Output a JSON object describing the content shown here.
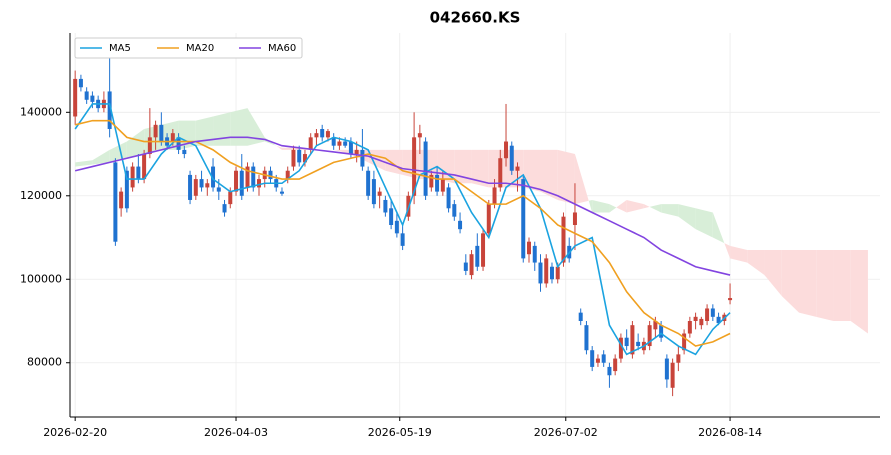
{
  "chart_data": {
    "type": "candlestick",
    "title": "042660.KS",
    "x": [
      0,
      1,
      2,
      3,
      4,
      5,
      6,
      7,
      8,
      9,
      10,
      11,
      12,
      13,
      14,
      15,
      16,
      17,
      18,
      19,
      20,
      21,
      22,
      23,
      24,
      25,
      26,
      27,
      28,
      29,
      30,
      31,
      32,
      33,
      34,
      35,
      36,
      37,
      38,
      39,
      40,
      41,
      42,
      43,
      44,
      45,
      46,
      47,
      48,
      49,
      50,
      51,
      52,
      53,
      54,
      55,
      56,
      57,
      58,
      59,
      60,
      61,
      62,
      63,
      64,
      65,
      66,
      67,
      68,
      69,
      70,
      71,
      72,
      73,
      74,
      75,
      76,
      77,
      78,
      79,
      80,
      81,
      82,
      83,
      84,
      85,
      86,
      87,
      88,
      89,
      90,
      91,
      92,
      93,
      94,
      95,
      96,
      97,
      98,
      99,
      100,
      101,
      102,
      103,
      104,
      105,
      106,
      107,
      108,
      109,
      110,
      111,
      112,
      113,
      114
    ],
    "ohlc": [
      [
        139000,
        150000,
        137000,
        148000
      ],
      [
        148000,
        149000,
        145000,
        146000
      ],
      [
        145000,
        146000,
        142000,
        143000
      ],
      [
        144000,
        145000,
        141000,
        142500
      ],
      [
        143000,
        144000,
        140000,
        141000
      ],
      [
        141000,
        145000,
        140000,
        143000
      ],
      [
        145000,
        153000,
        134000,
        136000
      ],
      [
        128000,
        129000,
        108000,
        109000
      ],
      [
        117000,
        122000,
        115000,
        121000
      ],
      [
        126000,
        127000,
        116000,
        117000
      ],
      [
        122000,
        128000,
        121000,
        127000
      ],
      [
        127000,
        130000,
        123000,
        124000
      ],
      [
        124000,
        131000,
        123000,
        130000
      ],
      [
        130000,
        141000,
        129000,
        134000
      ],
      [
        134000,
        138000,
        131000,
        137000
      ],
      [
        137000,
        140000,
        132000,
        133000
      ],
      [
        134000,
        135000,
        131000,
        132000
      ],
      [
        133000,
        136000,
        132000,
        135000
      ],
      [
        134000,
        135000,
        130000,
        131000
      ],
      [
        131000,
        132000,
        129000,
        130000
      ],
      [
        125000,
        126000,
        118000,
        119000
      ],
      [
        120000,
        125000,
        119000,
        124000
      ],
      [
        124000,
        126000,
        121000,
        122000
      ],
      [
        122000,
        124000,
        120000,
        123000
      ],
      [
        127000,
        129000,
        121000,
        122000
      ],
      [
        122000,
        124000,
        119000,
        121000
      ],
      [
        118000,
        119000,
        115000,
        116000
      ],
      [
        118000,
        122000,
        117000,
        121000
      ],
      [
        121000,
        127000,
        120000,
        126000
      ],
      [
        126000,
        130000,
        119000,
        120000
      ],
      [
        122000,
        128000,
        121000,
        127000
      ],
      [
        127000,
        128000,
        121000,
        122000
      ],
      [
        122000,
        125000,
        120000,
        124000
      ],
      [
        124000,
        127000,
        122000,
        126000
      ],
      [
        126000,
        127000,
        123000,
        124000
      ],
      [
        124000,
        125000,
        121000,
        122000
      ],
      [
        121000,
        122000,
        120000,
        120500
      ],
      [
        124000,
        127000,
        123000,
        126000
      ],
      [
        127000,
        132000,
        126000,
        131000
      ],
      [
        131000,
        132000,
        127000,
        128000
      ],
      [
        128000,
        131000,
        127000,
        130000
      ],
      [
        131000,
        135000,
        130000,
        134000
      ],
      [
        134000,
        136000,
        132000,
        135000
      ],
      [
        136000,
        137000,
        133000,
        134000
      ],
      [
        134000,
        136000,
        133000,
        135500
      ],
      [
        134000,
        135000,
        131000,
        132000
      ],
      [
        132000,
        134000,
        131000,
        133000
      ],
      [
        133000,
        134000,
        131500,
        132000
      ],
      [
        133000,
        134000,
        129000,
        130000
      ],
      [
        130000,
        133000,
        128000,
        131000
      ],
      [
        131000,
        136000,
        126000,
        127000
      ],
      [
        126000,
        127000,
        119000,
        120000
      ],
      [
        124000,
        126000,
        117000,
        118000
      ],
      [
        120000,
        122000,
        117000,
        121000
      ],
      [
        119000,
        120000,
        115000,
        116000
      ],
      [
        117000,
        119000,
        112000,
        113000
      ],
      [
        114000,
        116000,
        110000,
        111000
      ],
      [
        111000,
        113000,
        107000,
        108000
      ],
      [
        115000,
        121000,
        114000,
        120000
      ],
      [
        120000,
        140000,
        118000,
        134000
      ],
      [
        134000,
        137000,
        130000,
        135000
      ],
      [
        133000,
        134000,
        119000,
        120000
      ],
      [
        122000,
        126000,
        121000,
        125000
      ],
      [
        125000,
        127000,
        120000,
        121000
      ],
      [
        121000,
        126000,
        120000,
        124000
      ],
      [
        122000,
        123000,
        116000,
        117000
      ],
      [
        118000,
        119000,
        114000,
        115000
      ],
      [
        114000,
        116000,
        111000,
        112000
      ],
      [
        104000,
        106000,
        101000,
        102000
      ],
      [
        101000,
        107000,
        100000,
        106000
      ],
      [
        108000,
        111000,
        102000,
        103000
      ],
      [
        103000,
        112000,
        102000,
        111000
      ],
      [
        111000,
        119000,
        110000,
        118000
      ],
      [
        118000,
        124000,
        117000,
        122000
      ],
      [
        122000,
        131000,
        121000,
        129000
      ],
      [
        129000,
        142000,
        127000,
        133000
      ],
      [
        132000,
        133000,
        125000,
        126000
      ],
      [
        126000,
        128000,
        121000,
        127000
      ],
      [
        124000,
        125000,
        104000,
        105000
      ],
      [
        106000,
        110000,
        104000,
        109000
      ],
      [
        108000,
        109000,
        102000,
        104000
      ],
      [
        104000,
        106000,
        97000,
        99000
      ],
      [
        99000,
        106000,
        98000,
        105000
      ],
      [
        103000,
        104000,
        99000,
        100000
      ],
      [
        100000,
        104000,
        99000,
        103000
      ],
      [
        104000,
        116000,
        103000,
        115000
      ],
      [
        108000,
        110000,
        104000,
        105000
      ],
      [
        113000,
        123000,
        107000,
        116000
      ],
      [
        92000,
        93000,
        89000,
        90000
      ],
      [
        89000,
        90000,
        82000,
        83000
      ],
      [
        83000,
        84000,
        78000,
        79000
      ],
      [
        80000,
        82000,
        79000,
        81000
      ],
      [
        82000,
        83000,
        79000,
        80000
      ],
      [
        79000,
        80000,
        74000,
        77000
      ],
      [
        78000,
        82000,
        77000,
        81000
      ],
      [
        81000,
        87000,
        80000,
        86000
      ],
      [
        86000,
        88000,
        83000,
        84000
      ],
      [
        82000,
        90000,
        81000,
        89000
      ],
      [
        85000,
        87000,
        83000,
        84000
      ],
      [
        83000,
        86000,
        82000,
        85000
      ],
      [
        84000,
        90000,
        83000,
        89000
      ],
      [
        88000,
        91000,
        86000,
        90000
      ],
      [
        89000,
        90000,
        85000,
        86000
      ],
      [
        81000,
        82000,
        74000,
        76000
      ],
      [
        74000,
        81000,
        72000,
        80000
      ],
      [
        80000,
        84000,
        78000,
        82000
      ],
      [
        83000,
        88000,
        82000,
        87000
      ],
      [
        87000,
        91000,
        86000,
        90000
      ],
      [
        90000,
        92000,
        88000,
        91000
      ],
      [
        89000,
        91000,
        88000,
        90500
      ],
      [
        90000,
        94000,
        89000,
        93000
      ],
      [
        93000,
        94000,
        90000,
        91000
      ],
      [
        91000,
        92000,
        89000,
        89500
      ],
      [
        90000,
        92000,
        89000,
        91500
      ],
      [
        95000,
        99000,
        94000,
        95500
      ]
    ],
    "up_color": "#c8443a",
    "down_color": "#1f72d0",
    "series": [
      {
        "name": "MA5",
        "color": "#1ba3e0",
        "x": [
          0,
          3,
          6,
          9,
          12,
          15,
          18,
          21,
          24,
          27,
          30,
          33,
          36,
          39,
          42,
          45,
          48,
          51,
          54,
          57,
          60,
          63,
          66,
          69,
          72,
          75,
          78,
          81,
          84,
          87,
          90,
          93,
          96,
          99,
          102,
          105,
          108,
          111,
          114
        ],
        "values": [
          136000,
          142000,
          142000,
          124000,
          124000,
          130000,
          134000,
          132000,
          124000,
          121000,
          122000,
          123000,
          123000,
          126000,
          132000,
          134000,
          133000,
          131000,
          122000,
          113000,
          125000,
          127000,
          124000,
          116000,
          110000,
          122000,
          125000,
          117000,
          103000,
          108000,
          110000,
          89000,
          82000,
          84000,
          87000,
          84000,
          82000,
          88000,
          92000
        ]
      },
      {
        "name": "MA20",
        "color": "#f0a020",
        "x": [
          0,
          3,
          6,
          9,
          12,
          15,
          18,
          21,
          24,
          27,
          30,
          33,
          36,
          39,
          42,
          45,
          48,
          51,
          54,
          57,
          60,
          63,
          66,
          69,
          72,
          75,
          78,
          81,
          84,
          87,
          90,
          93,
          96,
          99,
          102,
          105,
          108,
          111,
          114
        ],
        "values": [
          137000,
          138000,
          138000,
          134000,
          133000,
          133000,
          133000,
          133000,
          131000,
          128000,
          126000,
          125000,
          124000,
          124000,
          126000,
          128000,
          129000,
          130000,
          129000,
          126000,
          125000,
          124000,
          124000,
          121000,
          118000,
          118000,
          120000,
          117000,
          113000,
          111000,
          109000,
          104000,
          97000,
          92000,
          89000,
          87000,
          84000,
          85000,
          87000
        ]
      },
      {
        "name": "MA60",
        "color": "#8244e0",
        "x": [
          0,
          3,
          6,
          9,
          12,
          15,
          18,
          21,
          24,
          27,
          30,
          33,
          36,
          39,
          42,
          45,
          48,
          51,
          54,
          57,
          60,
          63,
          66,
          69,
          72,
          75,
          78,
          81,
          84,
          87,
          90,
          93,
          96,
          99,
          102,
          105,
          108,
          111,
          114
        ],
        "values": [
          126000,
          127000,
          128000,
          129000,
          130000,
          131000,
          132000,
          133000,
          133500,
          134000,
          134000,
          133500,
          132000,
          131500,
          131000,
          130500,
          130000,
          129500,
          128000,
          126500,
          126000,
          125500,
          125000,
          124000,
          123000,
          123000,
          122500,
          121500,
          120000,
          118000,
          116000,
          114000,
          112000,
          110000,
          107000,
          105000,
          103000,
          102000,
          101000
        ]
      }
    ],
    "cloud": {
      "x": [
        0,
        3,
        6,
        9,
        12,
        15,
        18,
        21,
        24,
        27,
        30,
        33,
        36,
        39,
        42,
        45,
        48,
        51,
        54,
        57,
        60,
        63,
        66,
        69,
        72,
        75,
        78,
        81,
        84,
        87,
        90,
        93,
        96,
        99,
        102,
        105,
        108,
        111,
        114,
        117,
        120,
        123,
        126,
        129,
        132,
        135,
        138
      ],
      "span_a": [
        128000,
        128500,
        131000,
        133000,
        136000,
        137000,
        138000,
        138000,
        139000,
        140000,
        141000,
        134000,
        131000,
        131000,
        131000,
        131000,
        130000,
        128000,
        126000,
        125000,
        124000,
        124000,
        123000,
        123000,
        122000,
        122000,
        122000,
        121000,
        119000,
        118000,
        119000,
        118000,
        116000,
        117000,
        118000,
        118000,
        117000,
        116000,
        105000,
        104000,
        101000,
        96000,
        92000,
        91000,
        90000,
        90000,
        87000
      ],
      "span_b": [
        127000,
        127500,
        128000,
        129000,
        130000,
        131000,
        131000,
        132000,
        132000,
        132000,
        132000,
        133000,
        131500,
        131500,
        131000,
        131000,
        131000,
        131000,
        131000,
        131000,
        131000,
        131000,
        131000,
        131000,
        131000,
        131000,
        131000,
        131000,
        131000,
        130000,
        116000,
        116000,
        119000,
        118000,
        116000,
        115000,
        112000,
        110000,
        108000,
        107000,
        107000,
        107000,
        107000,
        107000,
        107000,
        107000,
        107000
      ],
      "up_color": "#d8eed8",
      "down_color": "#fcdcdc"
    },
    "xlim": [
      -0.9,
      140.1
    ],
    "xticks": [
      {
        "value": 0,
        "label": "2026-02-20"
      },
      {
        "value": 28,
        "label": "2026-04-03"
      },
      {
        "value": 56.5,
        "label": "2026-05-19"
      },
      {
        "value": 85.4,
        "label": "2026-07-02"
      },
      {
        "value": 114,
        "label": "2026-08-14"
      }
    ],
    "ylim": [
      67000,
      159000
    ],
    "yticks": [
      80000,
      100000,
      120000,
      140000
    ],
    "grid": true,
    "legend": "upper left"
  }
}
